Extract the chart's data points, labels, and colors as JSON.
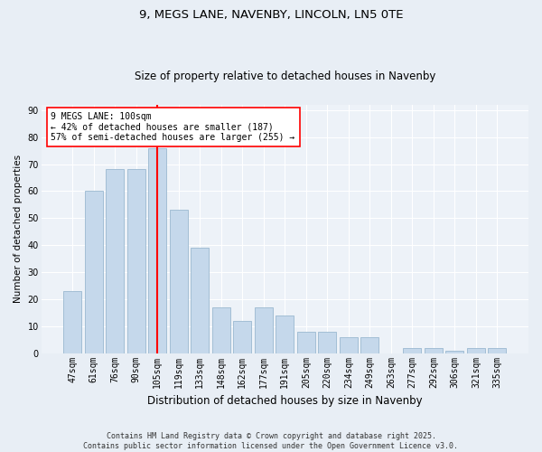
{
  "title1": "9, MEGS LANE, NAVENBY, LINCOLN, LN5 0TE",
  "title2": "Size of property relative to detached houses in Navenby",
  "xlabel": "Distribution of detached houses by size in Navenby",
  "ylabel": "Number of detached properties",
  "categories": [
    "47sqm",
    "61sqm",
    "76sqm",
    "90sqm",
    "105sqm",
    "119sqm",
    "133sqm",
    "148sqm",
    "162sqm",
    "177sqm",
    "191sqm",
    "205sqm",
    "220sqm",
    "234sqm",
    "249sqm",
    "263sqm",
    "277sqm",
    "292sqm",
    "306sqm",
    "321sqm",
    "335sqm"
  ],
  "values": [
    23,
    60,
    68,
    68,
    76,
    53,
    39,
    17,
    12,
    17,
    14,
    8,
    8,
    6,
    6,
    0,
    2,
    2,
    1,
    2,
    2
  ],
  "bar_color": "#c5d8eb",
  "bar_edge_color": "#9ab8d0",
  "vline_index": 4,
  "vline_color": "red",
  "annotation_text": "9 MEGS LANE: 100sqm\n← 42% of detached houses are smaller (187)\n57% of semi-detached houses are larger (255) →",
  "annotation_box_color": "white",
  "annotation_box_edge": "red",
  "ylim": [
    0,
    92
  ],
  "yticks": [
    0,
    10,
    20,
    30,
    40,
    50,
    60,
    70,
    80,
    90
  ],
  "footer": "Contains HM Land Registry data © Crown copyright and database right 2025.\nContains public sector information licensed under the Open Government Licence v3.0.",
  "bg_color": "#e8eef5",
  "plot_bg_color": "#edf2f8",
  "grid_color": "#ffffff",
  "title1_fontsize": 9.5,
  "title2_fontsize": 8.5,
  "xlabel_fontsize": 8.5,
  "ylabel_fontsize": 7.5,
  "tick_fontsize": 7,
  "annotation_fontsize": 7,
  "footer_fontsize": 6
}
